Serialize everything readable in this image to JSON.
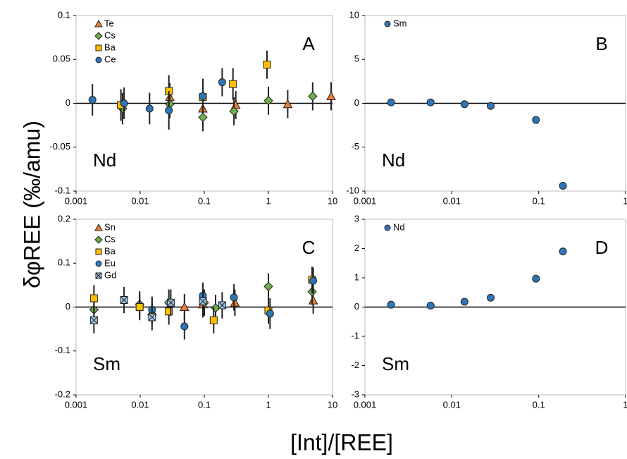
{
  "ylabel": "δφREE (‰/amu)",
  "xlabel": "[Int]/[REE]",
  "chart_data": [
    {
      "type": "scatter",
      "log_x": true,
      "panel": "A",
      "element": "Nd",
      "xlim": [
        0.001,
        10
      ],
      "xticks": [
        0.001,
        0.01,
        0.1,
        1,
        10
      ],
      "ylim": [
        -0.1,
        0.1
      ],
      "yticks": [
        -0.1,
        -0.05,
        0,
        0.05,
        0.1
      ],
      "series": [
        {
          "name": "Te",
          "color": "#ed7d31",
          "marker": "triangle",
          "x": [
            0.029,
            0.095,
            0.31,
            2.0,
            9.5
          ],
          "values": [
            0.007,
            -0.006,
            -0.002,
            -0.001,
            0.008
          ],
          "errors": [
            0.016,
            0.018,
            0.016,
            0.016,
            0.016
          ]
        },
        {
          "name": "Cs",
          "color": "#70ad47",
          "marker": "diamond",
          "x": [
            0.0053,
            0.029,
            0.095,
            0.29,
            1.0,
            4.9
          ],
          "values": [
            -0.006,
            -0.001,
            -0.016,
            -0.009,
            0.003,
            0.008
          ],
          "errors": [
            0.018,
            0.016,
            0.016,
            0.016,
            0.016,
            0.016
          ]
        },
        {
          "name": "Ba",
          "color": "#ffc000",
          "marker": "square",
          "x": [
            0.005,
            0.028,
            0.095,
            0.28,
            0.95
          ],
          "values": [
            -0.002,
            0.014,
            0.007,
            0.022,
            0.044
          ],
          "errors": [
            0.018,
            0.018,
            0.018,
            0.018,
            0.016
          ]
        },
        {
          "name": "Ce",
          "color": "#2e75b6",
          "marker": "circle",
          "x": [
            0.0018,
            0.0056,
            0.014,
            0.028,
            0.095,
            0.19
          ],
          "values": [
            0.004,
            0,
            -0.006,
            -0.008,
            0.008,
            0.024
          ],
          "errors": [
            0.018,
            0.018,
            0.018,
            0.022,
            0.02,
            0.016
          ]
        }
      ]
    },
    {
      "type": "scatter",
      "log_x": true,
      "panel": "B",
      "element": "Nd",
      "xlim": [
        0.001,
        1
      ],
      "xticks": [
        0.001,
        0.01,
        0.1,
        1
      ],
      "ylim": [
        -10,
        10
      ],
      "yticks": [
        -10,
        -5,
        0,
        5,
        10
      ],
      "series": [
        {
          "name": "Sm",
          "color": "#2e75b6",
          "marker": "circle",
          "x": [
            0.002,
            0.0057,
            0.014,
            0.028,
            0.093,
            0.19
          ],
          "values": [
            0.1,
            0.1,
            -0.1,
            -0.3,
            -1.9,
            -9.4
          ]
        }
      ]
    },
    {
      "type": "scatter",
      "log_x": true,
      "panel": "C",
      "element": "Sm",
      "xlim": [
        0.001,
        10
      ],
      "xticks": [
        0.001,
        0.01,
        0.1,
        1,
        10
      ],
      "ylim": [
        -0.2,
        0.2
      ],
      "yticks": [
        -0.2,
        -0.1,
        0,
        0.1,
        0.2
      ],
      "series": [
        {
          "name": "Sn",
          "color": "#ed7d31",
          "marker": "triangle",
          "x": [
            0.0153,
            0.049,
            0.095,
            0.3,
            5.0
          ],
          "values": [
            -0.01,
            0,
            0.006,
            0.01,
            0.015
          ],
          "errors": [
            0.03,
            0.03,
            0.03,
            0.03,
            0.03
          ]
        },
        {
          "name": "Cs",
          "color": "#70ad47",
          "marker": "diamond",
          "x": [
            0.0019,
            0.0098,
            0.028,
            0.1,
            0.15,
            1.0,
            4.8
          ],
          "values": [
            -0.006,
            0.006,
            0.01,
            0.01,
            -0.002,
            0.047,
            0.035
          ],
          "errors": [
            0.03,
            0.03,
            0.03,
            0.03,
            0.03,
            0.03,
            0.03
          ]
        },
        {
          "name": "Ba",
          "color": "#ffc000",
          "marker": "square",
          "x": [
            0.0019,
            0.0098,
            0.028,
            0.14,
            1.0,
            4.8
          ],
          "values": [
            0.02,
            0,
            -0.01,
            -0.03,
            -0.008,
            0.062
          ],
          "errors": [
            0.03,
            0.03,
            0.03,
            0.03,
            0.03,
            0.03
          ]
        },
        {
          "name": "Eu",
          "color": "#2e75b6",
          "marker": "circle",
          "x": [
            0.0153,
            0.049,
            0.095,
            0.29,
            1.06,
            5.0
          ],
          "values": [
            -0.006,
            -0.044,
            0.026,
            0.022,
            -0.015,
            0.06
          ],
          "errors": [
            0.03,
            0.03,
            0.03,
            0.03,
            0.035,
            0.03
          ]
        },
        {
          "name": "Gd",
          "color": "#9dc3e6",
          "marker": "x-square",
          "x": [
            0.0019,
            0.0056,
            0.0153,
            0.03,
            0.095,
            0.19
          ],
          "values": [
            -0.03,
            0.016,
            -0.023,
            0.01,
            0.013,
            0.004
          ],
          "errors": [
            0.03,
            0.03,
            0.03,
            0.03,
            0.03,
            0.03
          ]
        }
      ]
    },
    {
      "type": "scatter",
      "log_x": true,
      "panel": "D",
      "element": "Sm",
      "xlim": [
        0.001,
        1
      ],
      "xticks": [
        0.001,
        0.01,
        0.1,
        1
      ],
      "ylim": [
        -3,
        3
      ],
      "yticks": [
        -3,
        -2,
        -1,
        0,
        1,
        2,
        3
      ],
      "series": [
        {
          "name": "Nd",
          "color": "#2e75b6",
          "marker": "circle",
          "x": [
            0.002,
            0.0057,
            0.014,
            0.028,
            0.093,
            0.19
          ],
          "values": [
            0.08,
            0.05,
            0.18,
            0.32,
            0.97,
            1.9
          ]
        }
      ]
    }
  ]
}
